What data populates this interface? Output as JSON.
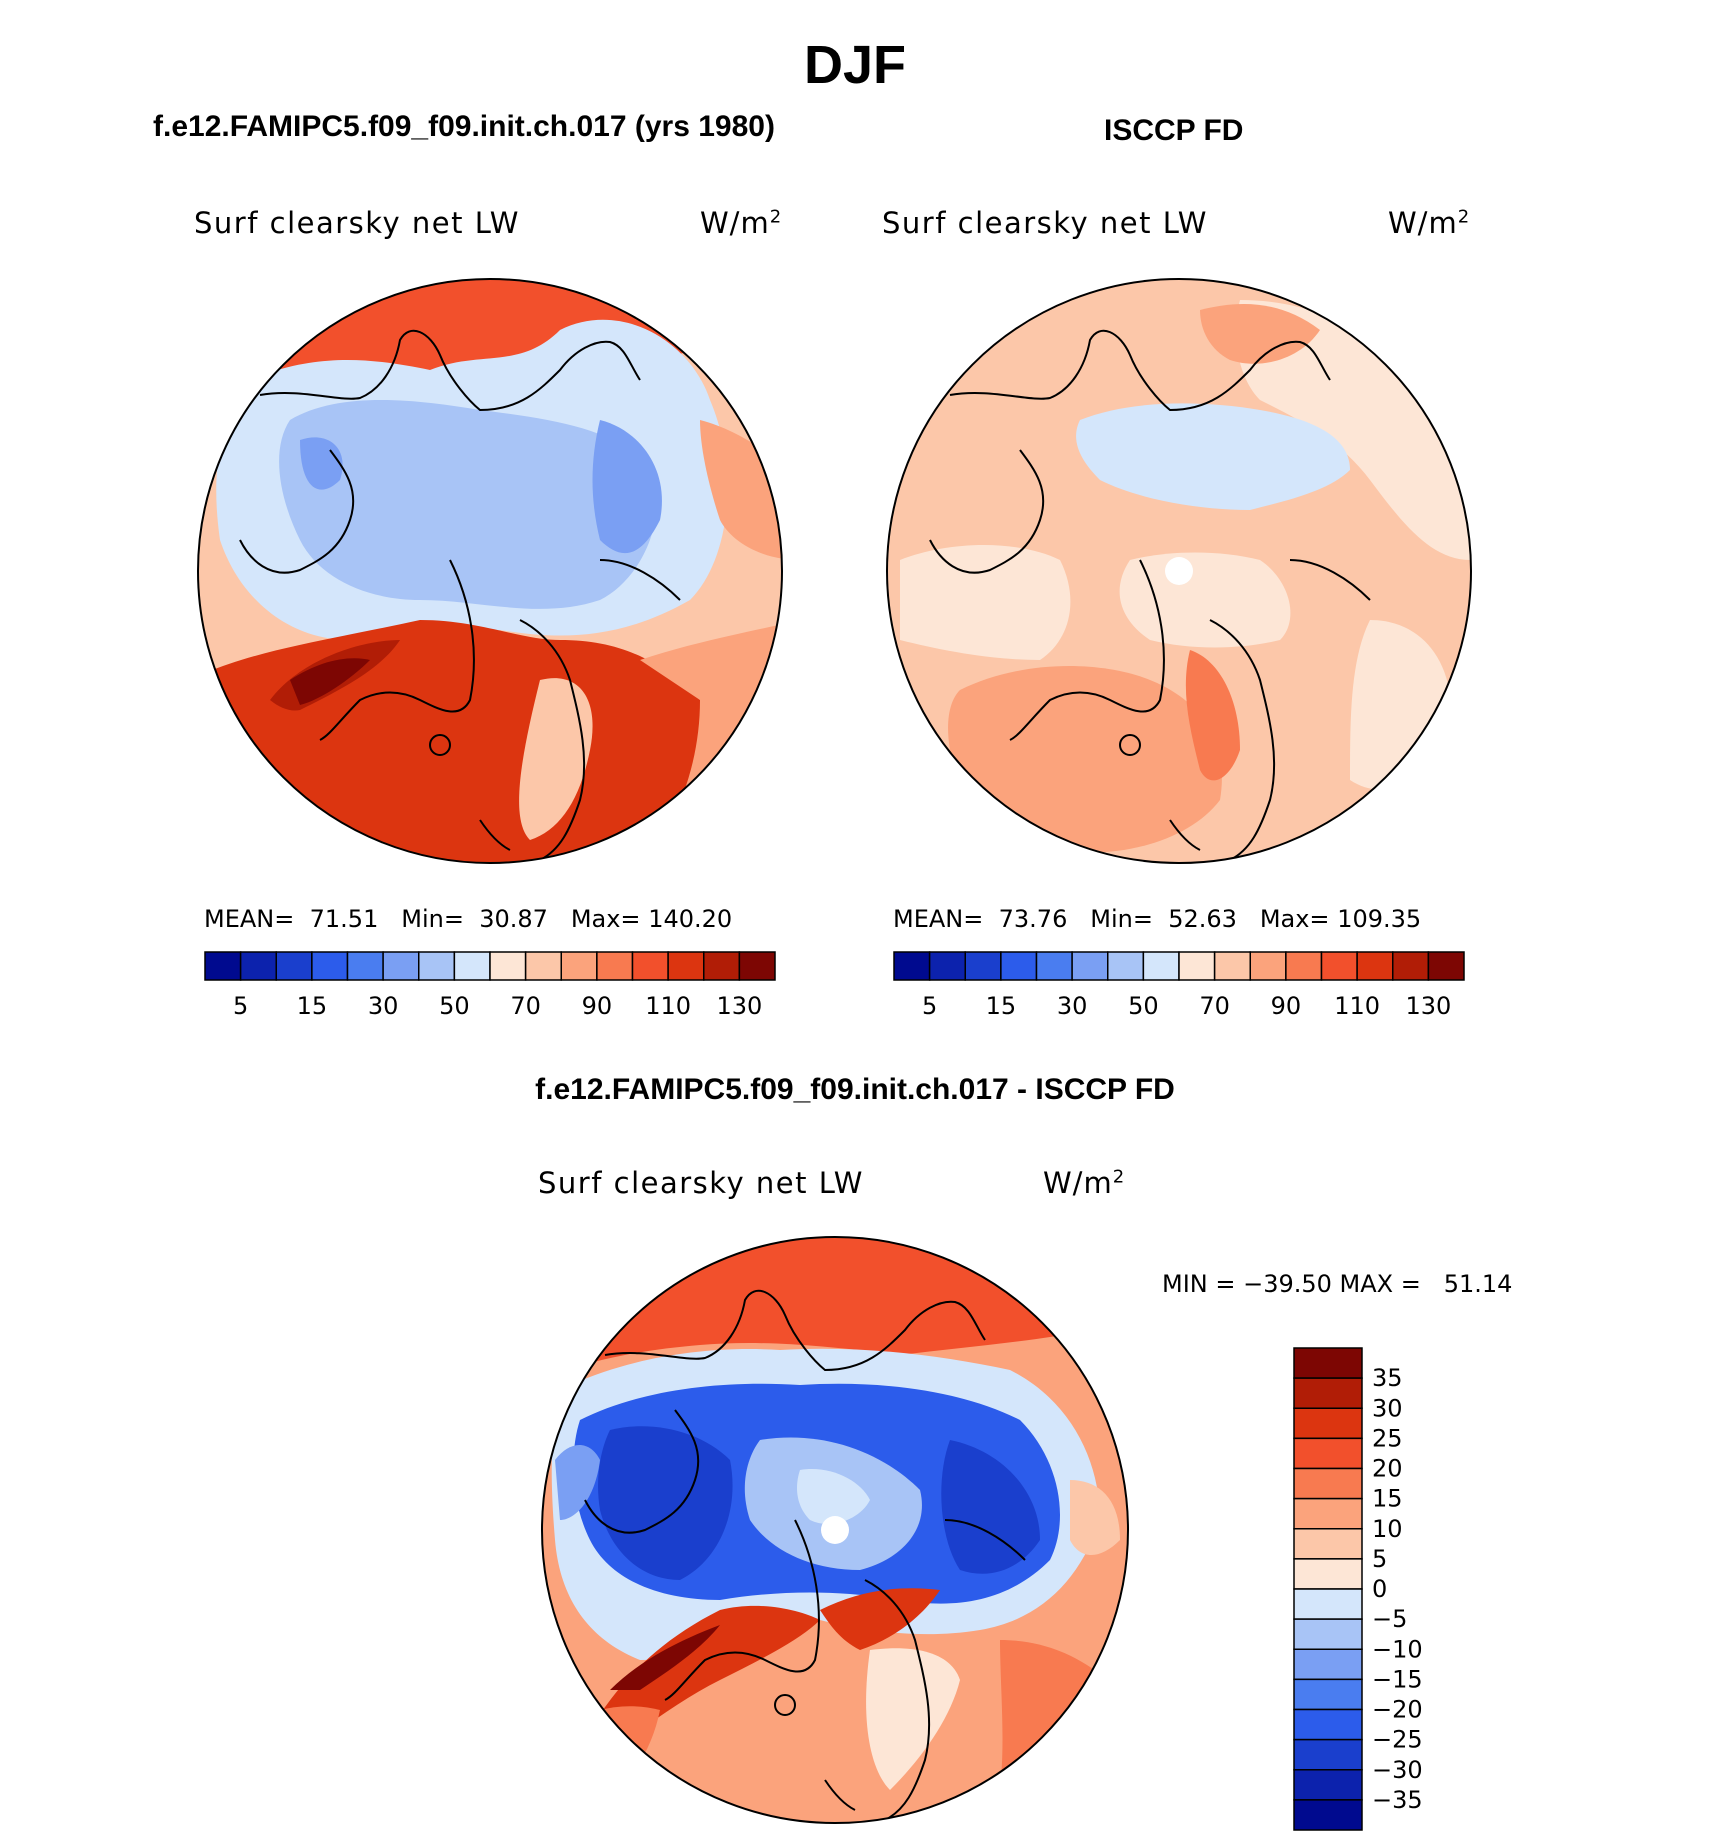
{
  "figure": {
    "season": "DJF",
    "title_model": "f.e12.FAMIPC5.f09_f09.init.ch.017 (yrs 1980)",
    "title_obs": "ISCCP FD",
    "title_diff": "f.e12.FAMIPC5.f09_f09.init.ch.017 - ISCCP FD"
  },
  "panels": {
    "model": {
      "variable": "Surf clearsky net LW",
      "units": "W/m",
      "units_sup": "2",
      "stats": {
        "mean_label": "MEAN=",
        "mean": "71.51",
        "min_label": "Min=",
        "min": "30.87",
        "max_label": "Max=",
        "max": "140.20"
      }
    },
    "obs": {
      "variable": "Surf clearsky net LW",
      "units": "W/m",
      "units_sup": "2",
      "stats": {
        "mean_label": "MEAN=",
        "mean": "73.76",
        "min_label": "Min=",
        "min": "52.63",
        "max_label": "Max=",
        "max": "109.35"
      }
    },
    "diff": {
      "variable": "Surf clearsky net LW",
      "units": "W/m",
      "units_sup": "2",
      "minmax_text": "MIN = −39.50 MAX =   51.14"
    }
  },
  "colorbars": {
    "horizontal": {
      "tick_labels": [
        "5",
        "15",
        "30",
        "50",
        "70",
        "90",
        "110",
        "130"
      ],
      "colors": [
        "#000a8f",
        "#0c22ad",
        "#1a3fcd",
        "#2c5ceb",
        "#4a7df0",
        "#7a9ff3",
        "#a8c4f6",
        "#d4e6fb",
        "#fde6d6",
        "#fcc7a9",
        "#fba37c",
        "#f87a50",
        "#f2502c",
        "#dc3510",
        "#b11d06",
        "#7d0603"
      ]
    },
    "vertical": {
      "tick_labels": [
        "35",
        "30",
        "25",
        "20",
        "15",
        "10",
        "5",
        "0",
        "−5",
        "−10",
        "−15",
        "−20",
        "−25",
        "−30",
        "−35"
      ],
      "colors": [
        "#7d0603",
        "#b11d06",
        "#dc3510",
        "#f2502c",
        "#f87a50",
        "#fba37c",
        "#fcc7a9",
        "#fde6d6",
        "#d4e6fb",
        "#a8c4f6",
        "#7a9ff3",
        "#4a7df0",
        "#2c5ceb",
        "#1a3fcd",
        "#0c22ad",
        "#000a8f"
      ]
    }
  }
}
